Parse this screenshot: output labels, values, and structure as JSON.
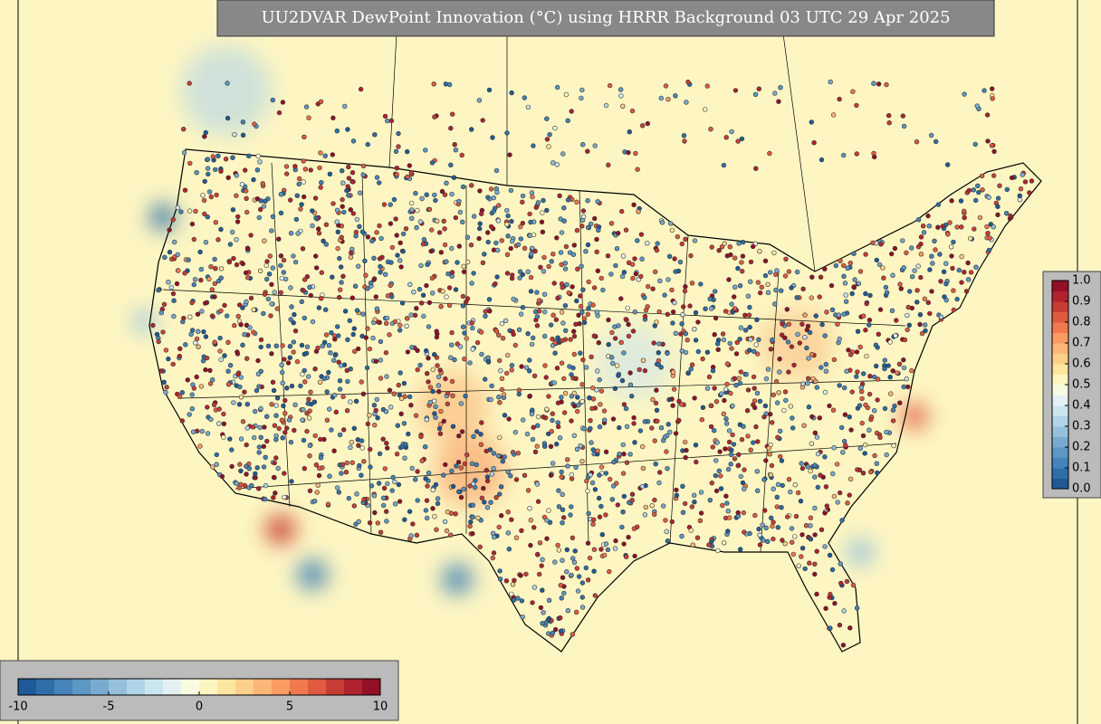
{
  "title": "UU2DVAR DewPoint Innovation (°C) using HRRR Background 03 UTC 29 Apr 2025",
  "colormap": [
    "#1f5a96",
    "#2e6fa9",
    "#4583b8",
    "#5d97c4",
    "#79abd0",
    "#95c1dd",
    "#b0d5e8",
    "#cbe5ef",
    "#e3f1f3",
    "#f7fbe0",
    "#fef6c2",
    "#fee6a0",
    "#fdd08a",
    "#fcb677",
    "#f99b62",
    "#f0794f",
    "#e05a40",
    "#c93c35",
    "#b0222d",
    "#921025"
  ],
  "colorbar_horizontal": {
    "lim": [
      -10,
      10
    ],
    "ticks": [
      -10,
      -5,
      0,
      5,
      10
    ]
  },
  "colorbar_vertical": {
    "lim": [
      0,
      1
    ],
    "ticks": [
      {
        "value": 0,
        "label": "0.0"
      },
      {
        "value": 0.1,
        "label": "0.1"
      },
      {
        "value": 0.2,
        "label": "0.2"
      },
      {
        "value": 0.3,
        "label": "0.3"
      },
      {
        "value": 0.4,
        "label": "0.4"
      },
      {
        "value": 0.5,
        "label": "0.5"
      },
      {
        "value": 0.6,
        "label": "0.6"
      },
      {
        "value": 0.7,
        "label": "0.7"
      },
      {
        "value": 0.8,
        "label": "0.8"
      },
      {
        "value": 0.9,
        "label": "0.9"
      },
      {
        "value": 1,
        "label": "1.0"
      }
    ]
  }
}
